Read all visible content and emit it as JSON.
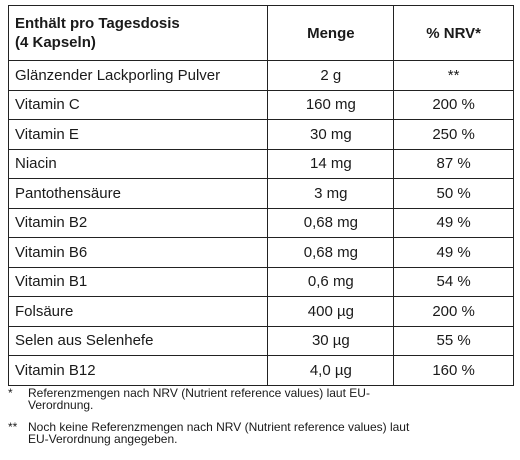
{
  "table": {
    "header": {
      "title": [
        "Enthält pro Tagesdosis",
        "(4 Kapseln)"
      ],
      "amount": "Menge",
      "nrv": "% NRV*"
    },
    "rows": [
      [
        "Glänzender Lackporling Pulver",
        "2 g",
        "**"
      ],
      [
        "Vitamin C",
        "160 mg",
        "200 %"
      ],
      [
        "Vitamin E",
        "30 mg",
        "250 %"
      ],
      [
        "Niacin",
        "14 mg",
        "87 %"
      ],
      [
        "Pantothensäure",
        "3 mg",
        "50 %"
      ],
      [
        "Vitamin B2",
        "0,68 mg",
        "49 %"
      ],
      [
        "Vitamin B6",
        "0,68 mg",
        "49 %"
      ],
      [
        "Vitamin B1",
        "0,6 mg",
        "54 %"
      ],
      [
        "Folsäure",
        "400 µg",
        "200 %"
      ],
      [
        "Selen aus Selenhefe",
        "30 µg",
        "55 %"
      ],
      [
        "Vitamin B12",
        "4,0 µg",
        "160 %"
      ]
    ]
  },
  "footnotes": [
    {
      "marker": "*",
      "lines": [
        "Referenzmengen nach NRV (Nutrient reference values) laut EU-",
        "Verordnung."
      ]
    },
    {
      "marker": "**",
      "lines": [
        "Noch keine Referenzmengen nach NRV (Nutrient reference values) laut",
        "EU-Verordnung angegeben."
      ]
    }
  ]
}
